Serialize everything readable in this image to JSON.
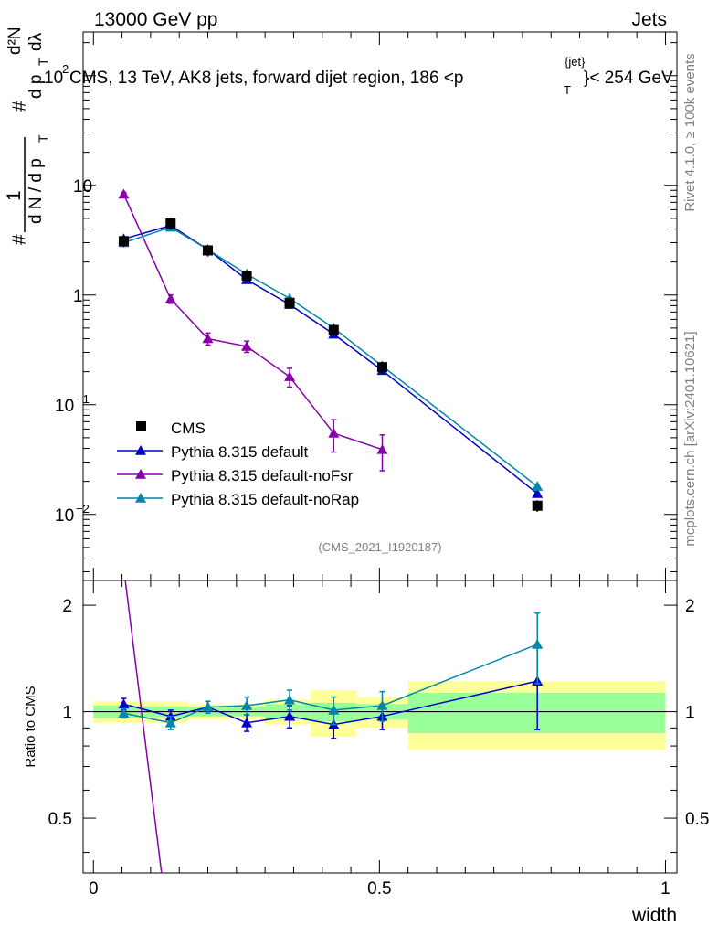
{
  "header": {
    "left": "13000 GeV pp",
    "right": "Jets"
  },
  "side_labels": {
    "rivet": "Rivet 4.1.0, ≥ 100k events",
    "mcplots": "mcplots.cern.ch [arXiv:2401.10621]"
  },
  "chart_data": {
    "type": "line",
    "title_parts": {
      "exp": "10",
      "sup": "2",
      "text": "CMS, 13 TeV, AK8 jets, forward dijet region, 186 <p",
      "sub": "T",
      "jet": "{jet}",
      "tail": "}< 254 GeV"
    },
    "analysis_id": "(CMS_2021_I1920187)",
    "xlabel": "width",
    "ylabel_parts": {
      "hash": "#",
      "one": "1",
      "den": "d N / d p",
      "denT": "T",
      "num": "d²N",
      "dpt": "d p",
      "dptT": "T",
      "dl": "dλ"
    },
    "ratio_ylabel": "Ratio to CMS",
    "xlim": [
      -0.018,
      1.02
    ],
    "ylim_main": [
      0.0025,
      250
    ],
    "ylim_ratio": [
      0.35,
      2.35
    ],
    "x_ticks": [
      0,
      0.5,
      1
    ],
    "x_tick_labels": [
      "0",
      "0.5",
      "1"
    ],
    "y_main_ticks": [
      {
        "value": 0.01,
        "base": "10",
        "exp": "−2"
      },
      {
        "value": 0.1,
        "base": "10",
        "exp": "−1"
      },
      {
        "value": 1,
        "base": "1",
        "exp": ""
      },
      {
        "value": 10,
        "base": "10",
        "exp": ""
      }
    ],
    "y_ratio_ticks": [
      {
        "value": 0.5,
        "label": "0.5"
      },
      {
        "value": 1,
        "label": "1"
      },
      {
        "value": 2,
        "label": "2"
      }
    ],
    "bins": [
      {
        "lo": 0.0,
        "hi": 0.08,
        "x": 0.053
      },
      {
        "lo": 0.08,
        "hi": 0.165,
        "x": 0.135
      },
      {
        "lo": 0.165,
        "hi": 0.23,
        "x": 0.2
      },
      {
        "lo": 0.23,
        "hi": 0.3,
        "x": 0.268
      },
      {
        "lo": 0.3,
        "hi": 0.38,
        "x": 0.343
      },
      {
        "lo": 0.38,
        "hi": 0.46,
        "x": 0.42
      },
      {
        "lo": 0.46,
        "hi": 0.55,
        "x": 0.505
      },
      {
        "lo": 0.55,
        "hi": 1.0,
        "x": 0.776
      }
    ],
    "cms": {
      "name": "CMS",
      "values": [
        3.1,
        4.5,
        2.55,
        1.5,
        0.85,
        0.48,
        0.22,
        0.012
      ],
      "band_inner": [
        0.04,
        0.035,
        0.03,
        0.03,
        0.05,
        0.06,
        0.05,
        0.13
      ],
      "band_outer": [
        0.07,
        0.07,
        0.05,
        0.05,
        0.08,
        0.15,
        0.1,
        0.22
      ]
    },
    "series": [
      {
        "name": "Pythia 8.315 default",
        "color": "#0000cc",
        "x": [
          0.053,
          0.135,
          0.2,
          0.268,
          0.343,
          0.42,
          0.505,
          0.776
        ],
        "values": [
          3.25,
          4.3,
          2.6,
          1.38,
          0.82,
          0.44,
          0.205,
          0.0155
        ],
        "ratio": [
          1.05,
          0.97,
          1.03,
          0.93,
          0.97,
          0.92,
          0.97,
          1.22
        ],
        "ratio_err": [
          0.04,
          0.04,
          0.04,
          0.05,
          0.07,
          0.08,
          0.08,
          0.33
        ]
      },
      {
        "name": "Pythia 8.315 default-noFsr",
        "color": "#8800aa",
        "x": [
          0.053,
          0.135,
          0.2,
          0.268,
          0.343,
          0.42,
          0.505
        ],
        "values": [
          8.3,
          0.92,
          0.4,
          0.34,
          0.18,
          0.055,
          0.039
        ],
        "err": [
          0.3,
          0.08,
          0.05,
          0.04,
          0.035,
          0.018,
          0.014
        ],
        "ratio_line": [
          [
            0.055,
            2.4
          ],
          [
            0.12,
            0.34
          ]
        ]
      },
      {
        "name": "Pythia 8.315 default-noRap",
        "color": "#0088aa",
        "x": [
          0.053,
          0.135,
          0.2,
          0.268,
          0.343,
          0.42,
          0.505,
          0.776
        ],
        "values": [
          3.0,
          4.15,
          2.6,
          1.55,
          0.93,
          0.5,
          0.225,
          0.018
        ],
        "ratio": [
          0.99,
          0.93,
          1.03,
          1.04,
          1.08,
          1.01,
          1.04,
          1.55
        ],
        "ratio_err": [
          0.03,
          0.04,
          0.04,
          0.06,
          0.07,
          0.09,
          0.1,
          0.35
        ]
      }
    ]
  }
}
